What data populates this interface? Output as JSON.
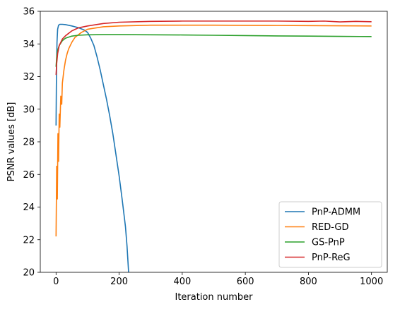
{
  "chart_data": {
    "type": "line",
    "title": "",
    "xlabel": "Iteration number",
    "ylabel": "PSNR values [dB]",
    "xlim": [
      -50,
      1050
    ],
    "ylim": [
      20,
      36
    ],
    "xticks": [
      0,
      200,
      400,
      600,
      800,
      1000
    ],
    "yticks": [
      20,
      22,
      24,
      26,
      28,
      30,
      32,
      34,
      36
    ],
    "legend_position": "lower-right",
    "grid": false,
    "series": [
      {
        "name": "PnP-ADMM",
        "color": "#1f77b4",
        "x": [
          0,
          1,
          2,
          3,
          5,
          8,
          12,
          20,
          30,
          50,
          70,
          90,
          100,
          110,
          120,
          130,
          140,
          150,
          160,
          170,
          180,
          190,
          200,
          210,
          220,
          225,
          230
        ],
        "y": [
          29.0,
          31.5,
          33.0,
          34.1,
          34.9,
          35.15,
          35.2,
          35.2,
          35.18,
          35.1,
          35.0,
          34.85,
          34.7,
          34.35,
          33.9,
          33.2,
          32.4,
          31.5,
          30.6,
          29.6,
          28.5,
          27.2,
          25.9,
          24.4,
          22.8,
          21.6,
          20.0
        ]
      },
      {
        "name": "RED-GD",
        "color": "#ff7f0e",
        "x": [
          0,
          2,
          4,
          6,
          8,
          10,
          12,
          15,
          18,
          20,
          25,
          30,
          35,
          40,
          50,
          60,
          80,
          100,
          150,
          200,
          300,
          400,
          500,
          600,
          700,
          800,
          900,
          1000
        ],
        "y": [
          22.2,
          26.5,
          24.5,
          28.5,
          26.8,
          29.7,
          28.9,
          30.8,
          30.3,
          31.6,
          32.4,
          33.0,
          33.4,
          33.7,
          34.1,
          34.4,
          34.7,
          34.9,
          35.05,
          35.1,
          35.15,
          35.15,
          35.15,
          35.14,
          35.13,
          35.12,
          35.11,
          35.1
        ]
      },
      {
        "name": "GS-PnP",
        "color": "#2ca02c",
        "x": [
          0,
          2,
          5,
          10,
          20,
          30,
          50,
          70,
          100,
          150,
          200,
          300,
          400,
          500,
          600,
          700,
          800,
          900,
          1000
        ],
        "y": [
          32.6,
          33.2,
          33.6,
          33.9,
          34.2,
          34.35,
          34.48,
          34.53,
          34.56,
          34.57,
          34.57,
          34.56,
          34.55,
          34.53,
          34.51,
          34.49,
          34.48,
          34.46,
          34.45
        ]
      },
      {
        "name": "PnP-ReG",
        "color": "#d62728",
        "x": [
          0,
          2,
          5,
          10,
          20,
          30,
          50,
          70,
          100,
          150,
          200,
          300,
          400,
          500,
          600,
          700,
          800,
          850,
          900,
          950,
          1000
        ],
        "y": [
          32.1,
          32.8,
          33.4,
          33.9,
          34.3,
          34.5,
          34.8,
          34.98,
          35.1,
          35.25,
          35.33,
          35.38,
          35.4,
          35.4,
          35.4,
          35.4,
          35.38,
          35.4,
          35.35,
          35.38,
          35.36
        ]
      }
    ]
  }
}
